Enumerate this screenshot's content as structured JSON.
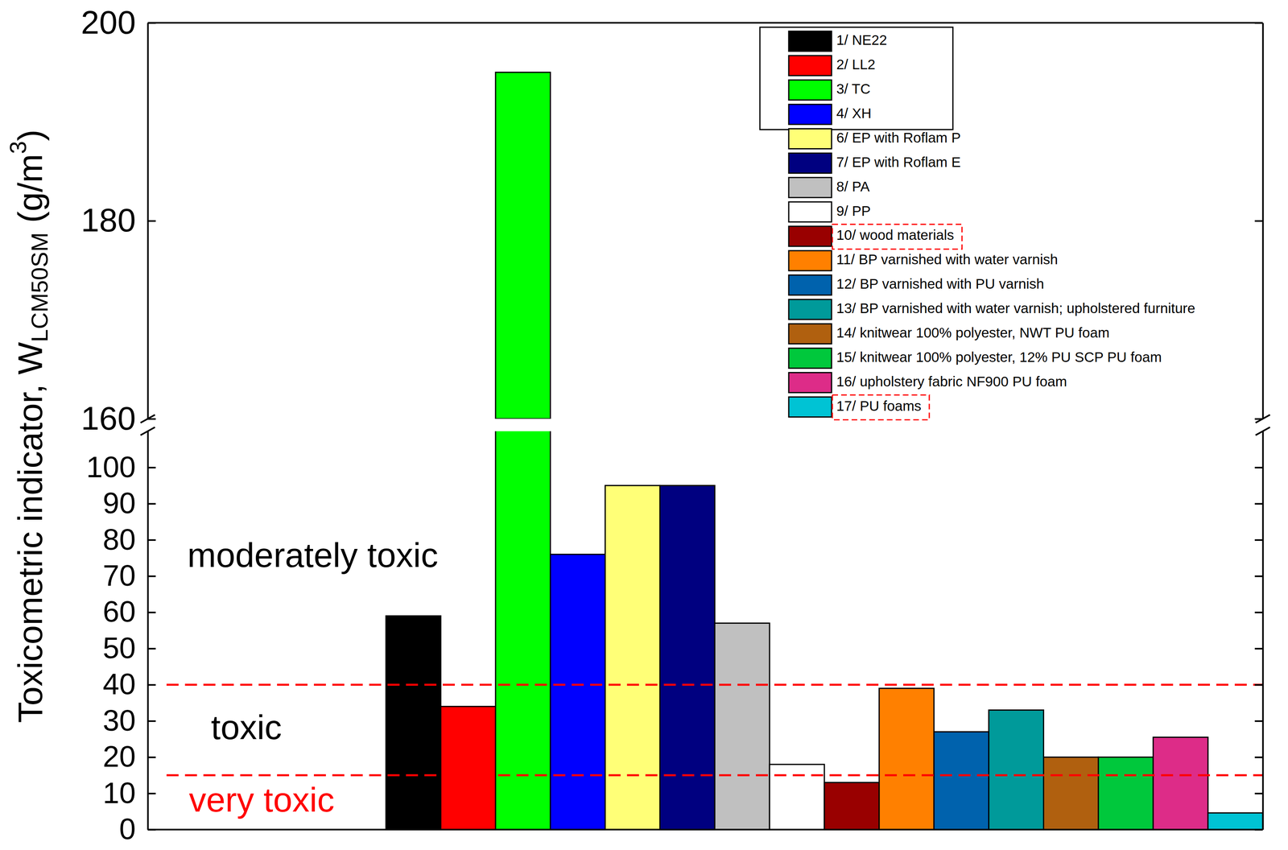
{
  "chart_data": {
    "type": "bar",
    "y_label": [
      "Toxicometric indicator, W",
      "LCM50SM",
      " (g/m",
      "3",
      ")"
    ],
    "categories": [
      "1/ NE22",
      "2/  LL2",
      "3/ TC",
      "4/ XH",
      "6/ EP with Roflam P",
      "7/ EP with Roflam E",
      "8/ PA",
      "9/ PP",
      "10/  wood materials",
      "11/ BP varnished with water varnish",
      "12/ BP varnished with PU varnish",
      "13/ BP varnished with water varnish; upholstered furniture",
      "14/ knitwear 100% polyester, NWT PU foam",
      "15/ knitwear 100% polyester, 12% PU SCP PU foam",
      "16/ upholstery fabric  NF900 PU foam",
      "17/  PU foams"
    ],
    "values": [
      59,
      34,
      195,
      76,
      95,
      95,
      57,
      18,
      13,
      39,
      27,
      33,
      20,
      20,
      25.5,
      4.6
    ],
    "colors": [
      "#000000",
      "#ff0000",
      "#00ff00",
      "#0000ff",
      "#ffff77",
      "#000080",
      "#c0c0c0",
      "#ffffff",
      "#990000",
      "#ff8000",
      "#0062ad",
      "#009a9a",
      "#b0600f",
      "#00c83c",
      "#dd2c88",
      "#00c3d4"
    ],
    "ylim": [
      0,
      200
    ],
    "y_break": [
      110,
      160
    ],
    "yticks": [
      0,
      10,
      20,
      30,
      40,
      50,
      60,
      70,
      80,
      90,
      100,
      160,
      180,
      200
    ],
    "tick_labels": "y",
    "legend": "top-right",
    "reference_lines": [
      {
        "value": 40,
        "color": "#ff0000"
      },
      {
        "value": 15,
        "color": "#ff0000"
      }
    ],
    "annotations": [
      {
        "text": "moderately toxic",
        "color": "#000000"
      },
      {
        "text": "toxic",
        "color": "#000000"
      },
      {
        "text": "very toxic",
        "color": "#ff0000"
      }
    ]
  }
}
